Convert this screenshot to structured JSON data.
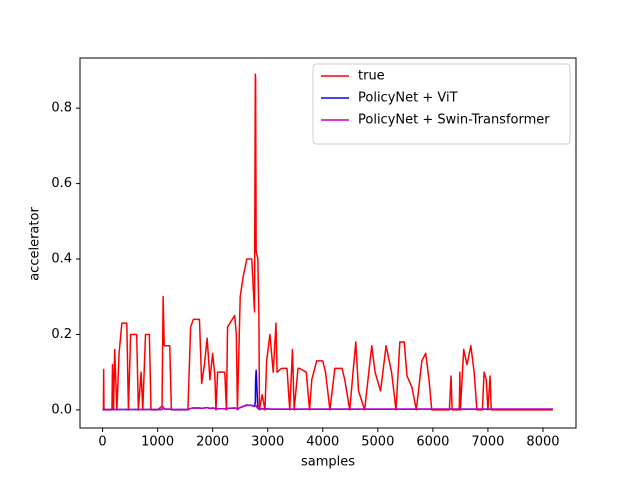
{
  "chart_data": {
    "type": "line",
    "xlabel": "samples",
    "ylabel": "accelerator",
    "x": [
      0,
      15,
      20,
      25,
      170,
      180,
      200,
      220,
      260,
      300,
      350,
      440,
      470,
      510,
      620,
      650,
      700,
      730,
      780,
      850,
      880,
      1000,
      1080,
      1100,
      1120,
      1130,
      1220,
      1250,
      1550,
      1600,
      1650,
      1760,
      1800,
      1850,
      1900,
      1950,
      2000,
      2040,
      2060,
      2090,
      2220,
      2250,
      2270,
      2400,
      2430,
      2450,
      2500,
      2550,
      2620,
      2710,
      2760,
      2775,
      2780,
      2790,
      2820,
      2840,
      2850,
      2900,
      2950,
      2980,
      3040,
      3100,
      3150,
      3170,
      3250,
      3350,
      3400,
      3450,
      3480,
      3550,
      3580,
      3700,
      3760,
      3800,
      3890,
      4000,
      4050,
      4130,
      4220,
      4350,
      4400,
      4490,
      4550,
      4600,
      4650,
      4760,
      4890,
      4950,
      5050,
      5150,
      5250,
      5330,
      5400,
      5480,
      5530,
      5620,
      5700,
      5800,
      5870,
      5930,
      5980,
      6300,
      6330,
      6350,
      6480,
      6490,
      6500,
      6560,
      6620,
      6690,
      6750,
      6800,
      6900,
      6930,
      6970,
      7000,
      7040,
      7060,
      8180
    ],
    "series": [
      {
        "name": "true",
        "color": "#ff0000",
        "values": [
          0,
          0,
          0.107,
          0,
          0,
          0.12,
          0,
          0.16,
          0,
          0.15,
          0.23,
          0.23,
          0,
          0.2,
          0.2,
          0,
          0.1,
          0,
          0.2,
          0.2,
          0,
          0,
          0.01,
          0.3,
          0.17,
          0.17,
          0.17,
          0,
          0,
          0.22,
          0.24,
          0.24,
          0.07,
          0.12,
          0.19,
          0.08,
          0.15,
          0.09,
          0,
          0.1,
          0.1,
          0,
          0.22,
          0.25,
          0.2,
          0,
          0.3,
          0.35,
          0.4,
          0.4,
          0.26,
          0.89,
          0.88,
          0.42,
          0.4,
          0.25,
          0,
          0.04,
          0,
          0.13,
          0.2,
          0.1,
          0.23,
          0.1,
          0.11,
          0.11,
          0,
          0.16,
          0,
          0.11,
          0.11,
          0.1,
          0,
          0.08,
          0.13,
          0.13,
          0.1,
          0,
          0.11,
          0.11,
          0.08,
          0,
          0.1,
          0.18,
          0.05,
          0,
          0.17,
          0.1,
          0.05,
          0.17,
          0.1,
          0,
          0.18,
          0.18,
          0.09,
          0.06,
          0,
          0.13,
          0.15,
          0.08,
          0,
          0,
          0.09,
          0,
          0,
          0.1,
          0,
          0.16,
          0.12,
          0.17,
          0.1,
          0,
          0,
          0.1,
          0.08,
          0,
          0.09,
          0,
          0
        ]
      },
      {
        "name": "PolicyNet + ViT",
        "color": "#0000ff",
        "values": [
          0.001,
          0.001,
          0.001,
          0.001,
          0.001,
          0.001,
          0.001,
          0.001,
          0.001,
          0.001,
          0.001,
          0.001,
          0.001,
          0.001,
          0.001,
          0.001,
          0.001,
          0.001,
          0.001,
          0.001,
          0.001,
          0.001,
          0.001,
          0.006,
          0.003,
          0.002,
          0.002,
          0.001,
          0.001,
          0.004,
          0.005,
          0.005,
          0.004,
          0.005,
          0.006,
          0.004,
          0.005,
          0.004,
          0.002,
          0.003,
          0.003,
          0.002,
          0.004,
          0.005,
          0.004,
          0.002,
          0.006,
          0.009,
          0.013,
          0.012,
          0.009,
          0.02,
          0.08,
          0.105,
          0.004,
          0.003,
          0.002,
          0.003,
          0.002,
          0.003,
          0.002,
          0.002,
          0.002,
          0.002,
          0.002,
          0.002,
          0.002,
          0.002,
          0.002,
          0.002,
          0.002,
          0.002,
          0.002,
          0.002,
          0.002,
          0.002,
          0.002,
          0.002,
          0.002,
          0.002,
          0.002,
          0.002,
          0.002,
          0.002,
          0.002,
          0.002,
          0.002,
          0.002,
          0.002,
          0.002,
          0.002,
          0.002,
          0.002,
          0.002,
          0.002,
          0.002,
          0.002,
          0.002,
          0.002,
          0.002,
          0.002,
          0.002,
          0.002,
          0.002,
          0.002,
          0.002,
          0.002,
          0.002,
          0.002,
          0.002,
          0.002,
          0.002,
          0.002,
          0.002,
          0.002,
          0.002,
          0.002,
          0.002,
          0.002
        ]
      },
      {
        "name": "PolicyNet + Swin-Transformer",
        "color": "#bf00bf",
        "values": [
          0.001,
          0.001,
          0.001,
          0.001,
          0.001,
          0.001,
          0.001,
          0.001,
          0.001,
          0.001,
          0.001,
          0.001,
          0.001,
          0.001,
          0.001,
          0.001,
          0.001,
          0.001,
          0.001,
          0.001,
          0.001,
          0.001,
          0.001,
          0.008,
          0.003,
          0.002,
          0.002,
          0.001,
          0.001,
          0.004,
          0.005,
          0.005,
          0.004,
          0.005,
          0.006,
          0.004,
          0.005,
          0.004,
          0.002,
          0.003,
          0.003,
          0.002,
          0.004,
          0.005,
          0.004,
          0.002,
          0.006,
          0.009,
          0.012,
          0.012,
          0.01,
          0.012,
          0.012,
          0.01,
          0.004,
          0.003,
          0.002,
          0.003,
          0.002,
          0.003,
          0.002,
          0.002,
          0.002,
          0.002,
          0.002,
          0.002,
          0.002,
          0.002,
          0.002,
          0.002,
          0.002,
          0.002,
          0.002,
          0.002,
          0.002,
          0.002,
          0.002,
          0.002,
          0.002,
          0.002,
          0.002,
          0.002,
          0.002,
          0.002,
          0.002,
          0.002,
          0.002,
          0.002,
          0.002,
          0.002,
          0.002,
          0.002,
          0.002,
          0.002,
          0.002,
          0.002,
          0.002,
          0.002,
          0.002,
          0.002,
          0.002,
          0.002,
          0.002,
          0.002,
          0.002,
          0.002,
          0.002,
          0.002,
          0.002,
          0.002,
          0.002,
          0.002,
          0.002,
          0.002,
          0.002,
          0.002,
          0.002,
          0.002,
          0.002
        ]
      }
    ],
    "xlim": [
      -410,
      8600
    ],
    "ylim": [
      -0.048,
      0.933
    ],
    "xticks": [
      0,
      1000,
      2000,
      3000,
      4000,
      5000,
      6000,
      7000,
      8000
    ],
    "yticks": [
      {
        "value": 0,
        "label": "0.0"
      },
      0.2,
      0.4,
      0.6,
      0.8
    ],
    "legend": "upper right"
  }
}
